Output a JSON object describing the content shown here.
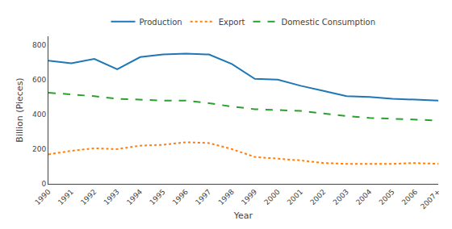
{
  "chart_data": {
    "type": "line",
    "categories": [
      "1990",
      "1991",
      "1992",
      "1993",
      "1994",
      "1995",
      "1996",
      "1997",
      "1998",
      "1999",
      "2000",
      "2001",
      "2002",
      "2003",
      "2004",
      "2005",
      "2006",
      "2007+"
    ],
    "series": [
      {
        "name": "Production",
        "line_style": "solid",
        "values": [
          710,
          695,
          720,
          660,
          730,
          745,
          750,
          745,
          690,
          605,
          600,
          565,
          535,
          505,
          500,
          490,
          485,
          480
        ]
      },
      {
        "name": "Export",
        "line_style": "dotted",
        "values": [
          170,
          190,
          205,
          200,
          220,
          225,
          240,
          235,
          200,
          155,
          145,
          135,
          120,
          115,
          115,
          115,
          120,
          115
        ]
      },
      {
        "name": "Domestic Consumption",
        "line_style": "dashed",
        "values": [
          525,
          515,
          505,
          490,
          485,
          480,
          480,
          465,
          445,
          430,
          425,
          420,
          405,
          390,
          380,
          375,
          370,
          365
        ]
      }
    ],
    "x_label": "Year",
    "y_label": "Billion (Pieces)",
    "ylim": [
      0,
      850
    ],
    "yticks": [
      0,
      200,
      400,
      600,
      800
    ],
    "grid": false,
    "legend": "top"
  }
}
